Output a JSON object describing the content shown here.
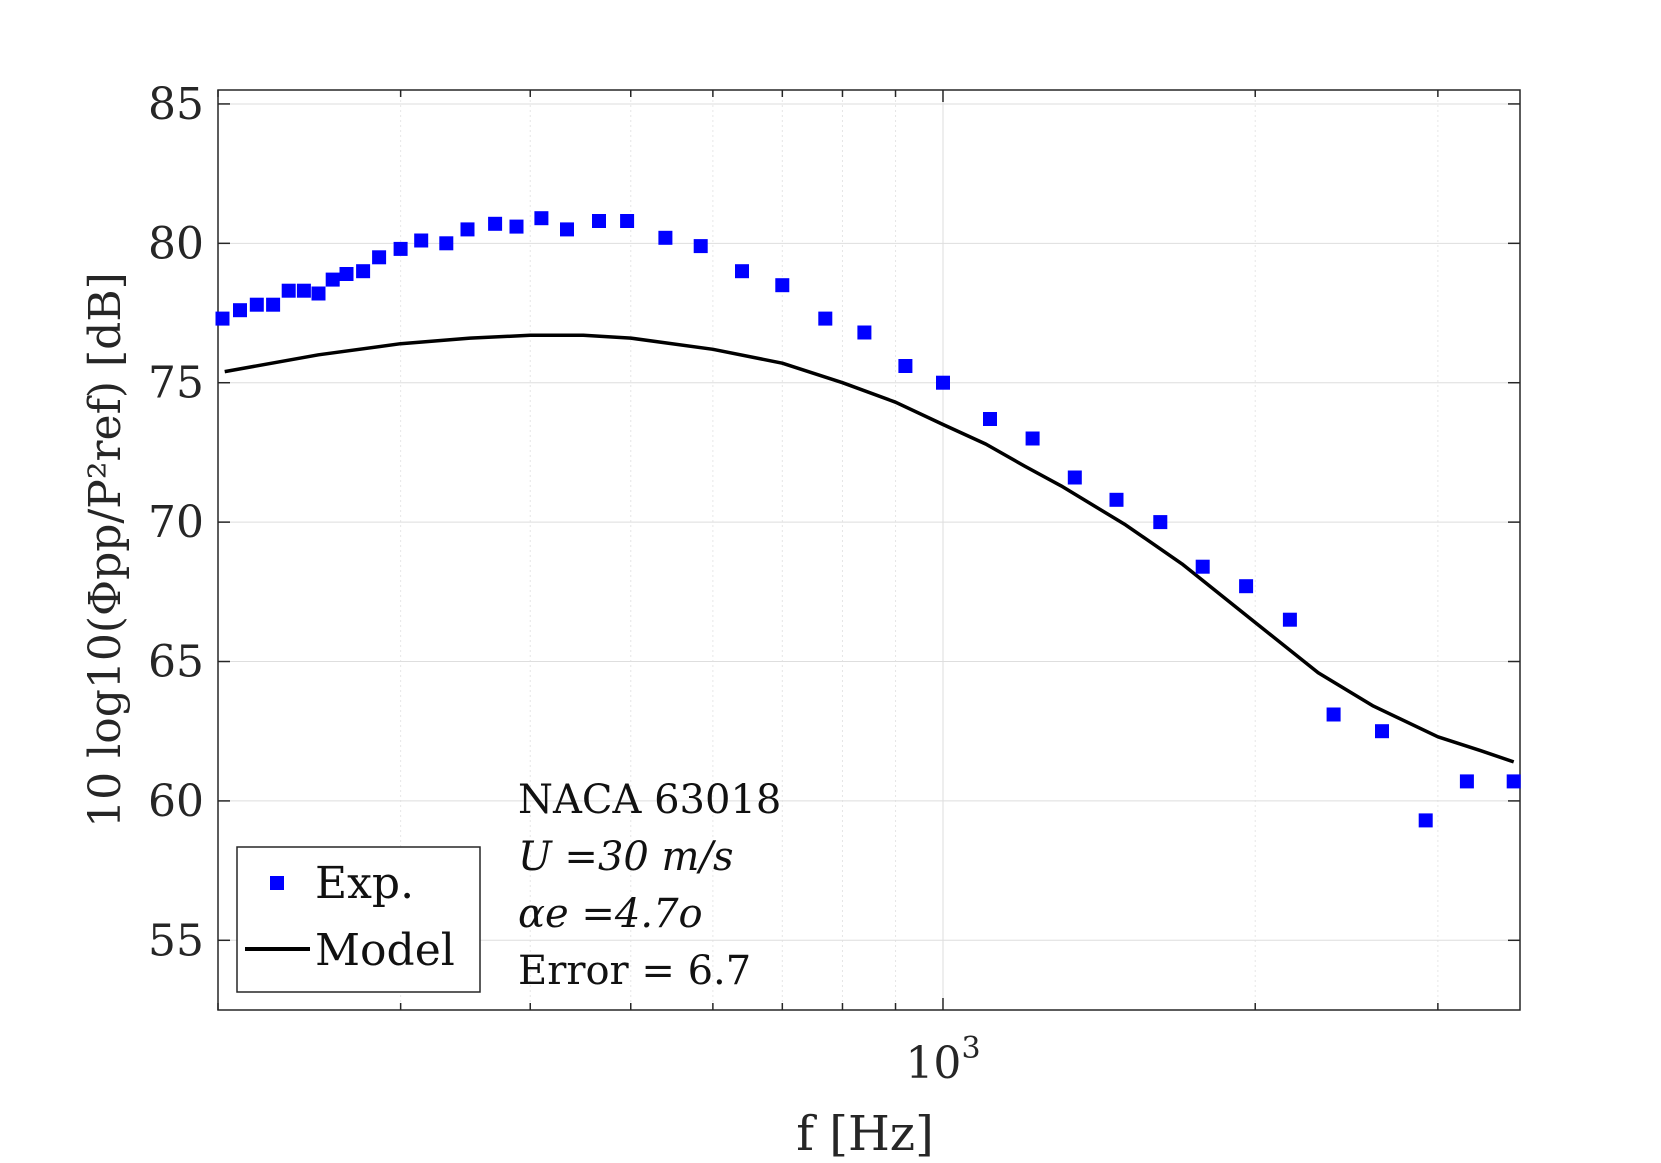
{
  "chart_data": {
    "type": "scatter",
    "title": "",
    "xlabel": "f  [Hz]",
    "ylabel": "10 log10(Φpp/P²ref) [dB]",
    "xscale": "log",
    "xlim": [
      200,
      3600
    ],
    "ylim": [
      52.5,
      85.5
    ],
    "yticks": [
      55,
      60,
      65,
      70,
      75,
      80,
      85
    ],
    "xticks": [
      {
        "value": 1000,
        "label": "10",
        "exp": "3"
      }
    ],
    "grid": true,
    "legend": {
      "placement": "bottom-left",
      "entries": [
        {
          "label": "Exp.",
          "marker": "square",
          "color": "#0000ff"
        },
        {
          "label": "Model",
          "marker": "line",
          "color": "#000000"
        }
      ]
    },
    "annotations": {
      "airfoil": "NACA 63018",
      "velocity": "U =30 m/s",
      "aoa": "αe =4.7o",
      "error": "Error = 6.7"
    },
    "series": [
      {
        "name": "Exp.",
        "kind": "scatter",
        "color": "#0000ff",
        "x": [
          202,
          210,
          218,
          226,
          234,
          242,
          250,
          258,
          266,
          276,
          286,
          300,
          314,
          332,
          348,
          370,
          388,
          410,
          434,
          466,
          496,
          540,
          584,
          640,
          700,
          770,
          840,
          920,
          1000,
          1110,
          1220,
          1340,
          1470,
          1620,
          1780,
          1960,
          2160,
          2380,
          2650,
          2920,
          3200,
          3550
        ],
        "y": [
          77.3,
          77.6,
          77.8,
          77.8,
          78.3,
          78.3,
          78.2,
          78.7,
          78.9,
          79.0,
          79.5,
          79.8,
          80.1,
          80.0,
          80.5,
          80.7,
          80.6,
          80.9,
          80.5,
          80.8,
          80.8,
          80.2,
          79.9,
          79.0,
          78.5,
          77.3,
          76.8,
          75.6,
          75.0,
          73.7,
          73.0,
          71.6,
          70.8,
          70.0,
          68.4,
          67.7,
          66.5,
          63.1,
          62.5,
          59.3,
          60.7,
          60.7
        ]
      },
      {
        "name": "Model",
        "kind": "line",
        "color": "#000000",
        "x": [
          203,
          250,
          300,
          350,
          400,
          450,
          500,
          600,
          700,
          800,
          900,
          1000,
          1100,
          1200,
          1300,
          1500,
          1700,
          2000,
          2300,
          2600,
          3000,
          3300,
          3550
        ],
        "y": [
          75.4,
          76.0,
          76.4,
          76.6,
          76.7,
          76.7,
          76.6,
          76.2,
          75.7,
          75.0,
          74.3,
          73.5,
          72.8,
          72.0,
          71.3,
          69.9,
          68.5,
          66.4,
          64.6,
          63.4,
          62.3,
          61.8,
          61.4
        ]
      }
    ]
  }
}
